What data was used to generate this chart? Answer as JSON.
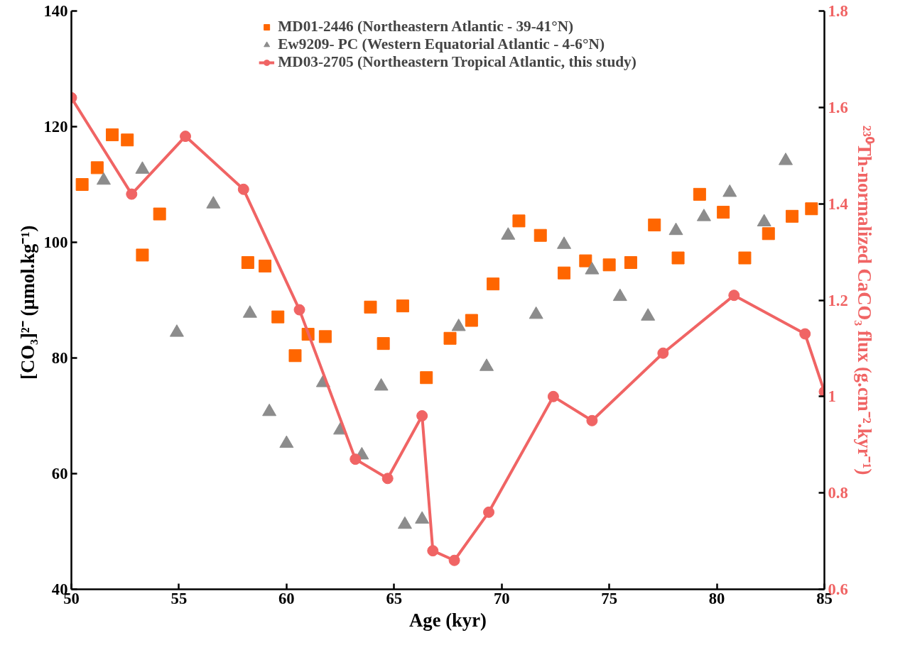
{
  "chart_data": {
    "type": "scatter",
    "xlabel": "Age (kyr)",
    "ylabel": "[CO₃]²⁻  (µmol.kg⁻¹)",
    "y2label": "²³⁰Th-normalized CaCO₃ flux (g.cm⁻².kyr⁻¹)",
    "xlim": [
      50,
      85
    ],
    "xticks": [
      50,
      55,
      60,
      65,
      70,
      75,
      80,
      85
    ],
    "ylim": [
      40,
      140
    ],
    "yticks": [
      40,
      60,
      80,
      100,
      120,
      140
    ],
    "y2lim": [
      0.6,
      1.8
    ],
    "y2ticks": [
      0.6,
      0.8,
      1,
      1.2,
      1.4,
      1.6,
      1.8
    ],
    "grid": false,
    "legend": "top",
    "series": [
      {
        "name": "MD01-2446 (Northeastern Atlantic - 39-41°N)",
        "color": "#ff6600",
        "marker": "square",
        "x": [
          50.5,
          51.2,
          51.9,
          52.6,
          53.3,
          54.1,
          58.2,
          59.0,
          59.6,
          60.4,
          61.0,
          61.8,
          63.9,
          64.5,
          65.4,
          66.5,
          67.6,
          68.6,
          69.6,
          70.8,
          71.8,
          72.9,
          73.9,
          75.0,
          76.0,
          77.1,
          78.2,
          79.2,
          80.3,
          81.3,
          82.4,
          83.5,
          84.4
        ],
        "values": [
          110.0,
          112.9,
          118.6,
          117.7,
          97.8,
          104.9,
          96.5,
          95.9,
          87.1,
          80.4,
          84.1,
          83.7,
          88.8,
          82.5,
          89.0,
          76.6,
          83.4,
          86.5,
          92.8,
          103.7,
          101.2,
          94.7,
          96.8,
          96.1,
          96.5,
          103.0,
          97.3,
          108.3,
          105.2,
          97.3,
          101.5,
          104.5,
          105.8
        ]
      },
      {
        "name": "Ew9209- PC (Western Equatorial Atlantic - 4-6°N)",
        "color": "#8c8c8c",
        "marker": "triangle",
        "x": [
          51.5,
          53.3,
          54.9,
          56.6,
          58.3,
          59.2,
          60.0,
          61.7,
          62.5,
          63.5,
          64.4,
          65.5,
          66.3,
          68.0,
          69.3,
          70.3,
          71.6,
          72.9,
          74.2,
          75.5,
          76.8,
          78.1,
          79.4,
          80.6,
          82.2,
          83.2
        ],
        "values": [
          110.7,
          112.6,
          84.4,
          106.6,
          87.7,
          70.7,
          65.2,
          75.7,
          67.5,
          63.2,
          75.1,
          51.2,
          52.1,
          85.4,
          78.5,
          101.2,
          87.5,
          99.6,
          95.2,
          90.6,
          87.2,
          102.0,
          104.4,
          108.6,
          103.5,
          114.1
        ]
      },
      {
        "name": "MD03-2705 (Northeastern Tropical Atlantic, this study)",
        "color": "#f06464",
        "type": "line",
        "axis": "y2",
        "marker": "circle",
        "line_style": "solid",
        "x": [
          50.0,
          52.8,
          55.3,
          58.0,
          60.6,
          63.2,
          64.7,
          66.3,
          66.8,
          67.8,
          69.4,
          72.4,
          74.2,
          77.5,
          80.8,
          84.1,
          85.0
        ],
        "values": [
          1.62,
          1.42,
          1.54,
          1.43,
          1.18,
          0.87,
          0.83,
          0.96,
          0.68,
          0.66,
          0.76,
          1.0,
          0.95,
          1.09,
          1.21,
          1.13,
          1.01
        ]
      }
    ]
  }
}
